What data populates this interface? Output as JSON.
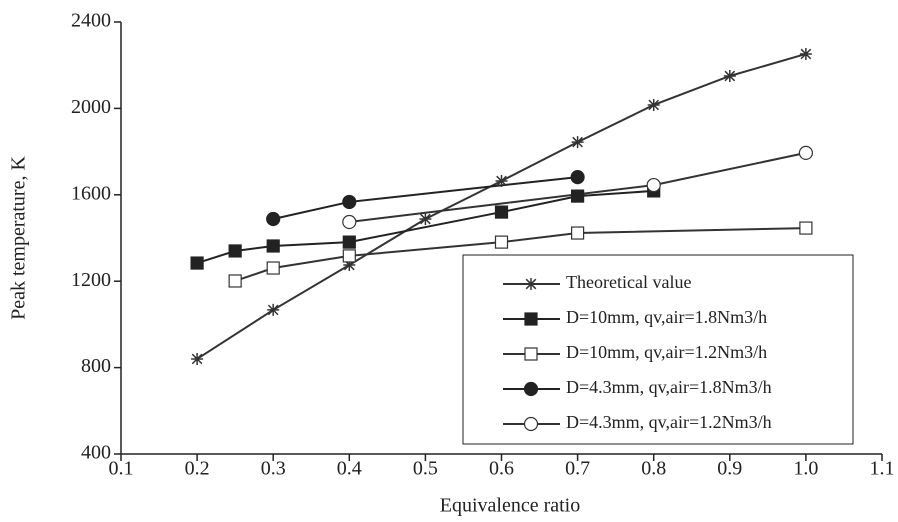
{
  "chart_data": {
    "type": "line",
    "xlabel": "Equivalence ratio",
    "ylabel": "Peak temperature, K",
    "xlim": [
      0.1,
      1.1
    ],
    "xticks": [
      0.1,
      0.2,
      0.3,
      0.4,
      0.5,
      0.6,
      0.7,
      0.8,
      0.9,
      {
        "value": 1,
        "label": "1.0"
      },
      1.1
    ],
    "ylim": [
      400,
      2400
    ],
    "yticks": [
      400,
      800,
      1200,
      1600,
      2000,
      2400
    ],
    "grid": false,
    "legend": "lower right",
    "series": [
      {
        "name": "Theoretical value",
        "color": "#333333",
        "marker": "star",
        "x": [
          0.2,
          0.3,
          0.4,
          0.5,
          0.6,
          0.7,
          0.8,
          0.9,
          1
        ],
        "values": [
          840,
          1067,
          1275,
          1488,
          1664,
          1844,
          2016,
          2150,
          2252
        ]
      },
      {
        "name": "D=10mm, qv,air=1.8Nm3/h",
        "color": "#222222",
        "marker": "square",
        "x": [
          0.2,
          0.25,
          0.3,
          0.4,
          0.6,
          0.7,
          0.8
        ],
        "values": [
          1284,
          1340,
          1363,
          1381,
          1520,
          1594,
          1618
        ]
      },
      {
        "name": "D=10mm, qv,air=1.2Nm3/h",
        "color": "#333333",
        "marker": "square-open",
        "x": [
          0.25,
          0.3,
          0.4,
          0.6,
          0.7,
          1
        ],
        "values": [
          1201,
          1261,
          1317,
          1381,
          1423,
          1446
        ]
      },
      {
        "name": "D=4.3mm, qv,air=1.8Nm3/h",
        "color": "#222222",
        "marker": "circle",
        "x": [
          0.3,
          0.4,
          0.7
        ],
        "values": [
          1488,
          1567,
          1682
        ]
      },
      {
        "name": "D=4.3mm, qv,air=1.2Nm3/h",
        "color": "#333333",
        "marker": "circle-open",
        "x": [
          0.4,
          0.8,
          1
        ],
        "values": [
          1474,
          1645,
          1794
        ]
      }
    ]
  }
}
